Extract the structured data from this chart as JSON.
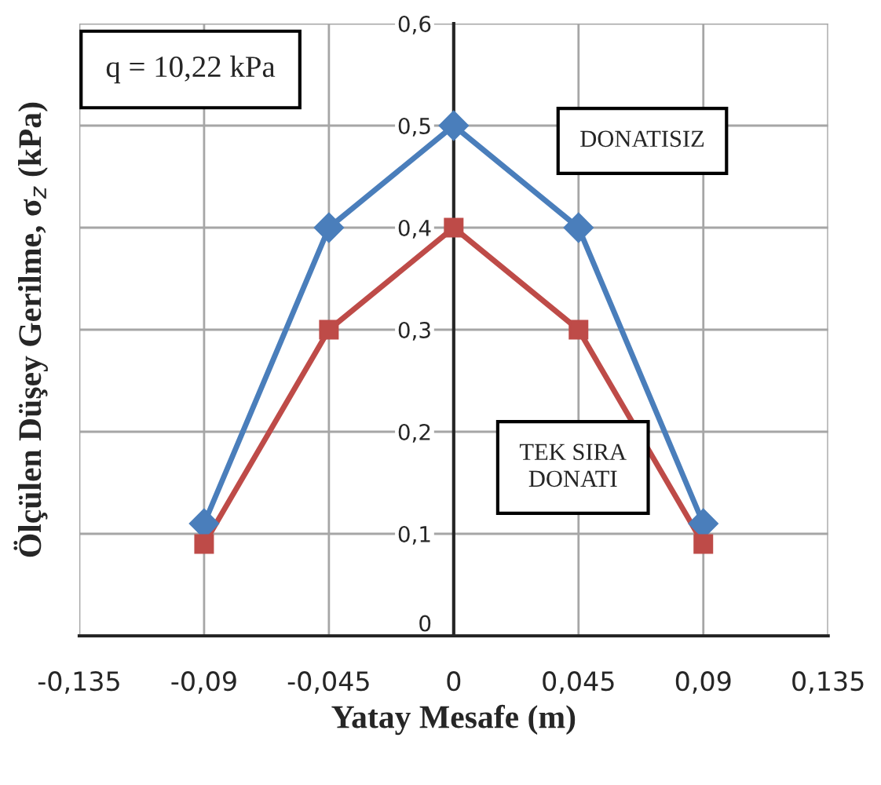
{
  "chart_data": {
    "type": "line",
    "xlabel": "Yatay Mesafe (m)",
    "ylabel": "Ölçülen Düşey Gerilme, σ$_{z}$ (kPa)",
    "annotations": [
      "q = 10,22 kPa"
    ],
    "x": [
      -0.09,
      -0.045,
      0,
      0.045,
      0.09
    ],
    "series": [
      {
        "name": "DONATISIZ",
        "color": "#4a7ebb",
        "marker": "diamond",
        "values": [
          0.11,
          0.4,
          0.5,
          0.4,
          0.11
        ]
      },
      {
        "name": "TEK SIRA DONATI",
        "color": "#be4b48",
        "marker": "square",
        "values": [
          0.09,
          0.3,
          0.4,
          0.3,
          0.09
        ]
      }
    ],
    "xlim": [
      -0.135,
      0.135
    ],
    "xticks": [
      {
        "value": -0.135,
        "label": "-0,135"
      },
      {
        "value": -0.09,
        "label": "-0,09"
      },
      {
        "value": -0.045,
        "label": "-0,045"
      },
      0,
      {
        "value": 0.045,
        "label": "0,045"
      },
      {
        "value": 0.09,
        "label": "0,09"
      },
      {
        "value": 0.135,
        "label": "0,135"
      }
    ],
    "ylim": [
      0,
      0.6
    ],
    "yticks": [
      0,
      {
        "value": 0.1,
        "label": "0,1"
      },
      {
        "value": 0.2,
        "label": "0,2"
      },
      {
        "value": 0.3,
        "label": "0,3"
      },
      {
        "value": 0.4,
        "label": "0,4"
      },
      {
        "value": 0.5,
        "label": "0,5"
      },
      {
        "value": 0.6,
        "label": "0,6"
      }
    ],
    "grid": true,
    "legend": false
  }
}
